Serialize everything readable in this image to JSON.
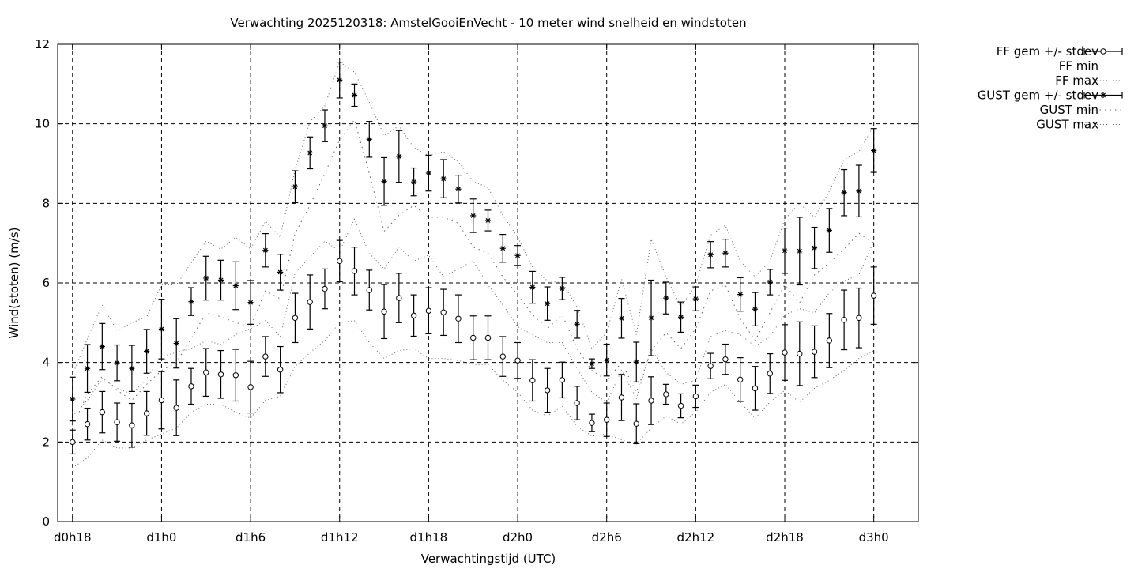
{
  "chart_data": {
    "type": "scatter",
    "title": "Verwachting 2025120318: AmstelGooiEnVecht - 10 meter wind snelheid en windstoten",
    "xlabel": "Verwachtingstijd (UTC)",
    "ylabel": "Wind(stoten) (m/s)",
    "ylim": [
      0,
      12
    ],
    "yticks": [
      0,
      2,
      4,
      6,
      8,
      10,
      12
    ],
    "xlim": [
      -0.5,
      28.5
    ],
    "xticks": [
      {
        "x": 0,
        "label": "d0h18"
      },
      {
        "x": 3,
        "label": "d1h0"
      },
      {
        "x": 6,
        "label": "d1h6"
      },
      {
        "x": 9,
        "label": "d1h12"
      },
      {
        "x": 12,
        "label": "d1h18"
      },
      {
        "x": 15,
        "label": "d2h0"
      },
      {
        "x": 18,
        "label": "d2h6"
      },
      {
        "x": 21,
        "label": "d2h12"
      },
      {
        "x": 24,
        "label": "d2h18"
      },
      {
        "x": 27,
        "label": "d3h0"
      }
    ],
    "grid": true,
    "legend_position": "outside-top-right",
    "legend": [
      {
        "label": "FF gem +/- stdev",
        "style": "errorbar-circle"
      },
      {
        "label": "FF min",
        "style": "dotted"
      },
      {
        "label": "FF max",
        "style": "dotted"
      },
      {
        "label": "GUST gem +/- stdev",
        "style": "errorbar-star"
      },
      {
        "label": "GUST min",
        "style": "dotted-sparse"
      },
      {
        "label": "GUST max",
        "style": "dotted"
      }
    ],
    "x": [
      0,
      0.5,
      1,
      1.5,
      2,
      2.5,
      3,
      3.5,
      4,
      4.5,
      5,
      5.5,
      6,
      6.5,
      7,
      7.5,
      8,
      8.5,
      9,
      9.5,
      10,
      10.5,
      11,
      11.5,
      12,
      12.5,
      13,
      13.5,
      14,
      14.5,
      15,
      15.5,
      16,
      16.5,
      17,
      17.5,
      18,
      18.5,
      19,
      19.5,
      20,
      20.5,
      21,
      21.5,
      22,
      22.5,
      23,
      23.5,
      24,
      24.5,
      25,
      25.5,
      26,
      26.5,
      27
    ],
    "series": [
      {
        "name": "FF gem +/- stdev",
        "values": [
          2.0,
          2.45,
          2.75,
          2.5,
          2.42,
          2.72,
          3.05,
          2.86,
          3.4,
          3.75,
          3.7,
          3.68,
          3.38,
          4.15,
          3.82,
          5.12,
          5.52,
          5.85,
          6.55,
          6.3,
          5.82,
          5.28,
          5.62,
          5.18,
          5.3,
          5.26,
          5.1,
          4.62,
          4.62,
          4.15,
          4.05,
          3.55,
          3.3,
          3.56,
          2.98,
          2.48,
          2.56,
          3.12,
          2.46,
          3.04,
          3.2,
          2.91,
          3.15,
          3.91,
          4.08,
          3.57,
          3.35,
          3.72,
          4.25,
          4.22,
          4.27,
          4.55,
          5.07,
          5.12,
          5.68
        ],
        "stdev": [
          0.3,
          0.4,
          0.52,
          0.48,
          0.55,
          0.55,
          0.72,
          0.7,
          0.45,
          0.6,
          0.6,
          0.65,
          0.65,
          0.5,
          0.58,
          0.62,
          0.68,
          0.5,
          0.52,
          0.6,
          0.5,
          0.68,
          0.62,
          0.52,
          0.58,
          0.58,
          0.6,
          0.55,
          0.55,
          0.5,
          0.45,
          0.52,
          0.55,
          0.45,
          0.42,
          0.22,
          0.42,
          0.58,
          0.5,
          0.6,
          0.25,
          0.3,
          0.28,
          0.32,
          0.38,
          0.55,
          0.55,
          0.5,
          0.7,
          0.8,
          0.65,
          0.68,
          0.75,
          0.75,
          0.72
        ]
      },
      {
        "name": "FF min",
        "values": [
          1.35,
          1.6,
          2.05,
          1.85,
          1.85,
          2.05,
          2.2,
          2.35,
          2.75,
          2.95,
          2.95,
          2.75,
          2.6,
          3.05,
          3.15,
          3.9,
          4.25,
          4.55,
          5.0,
          5.05,
          4.5,
          4.1,
          4.3,
          4.35,
          4.1,
          4.1,
          4.05,
          3.95,
          3.95,
          3.55,
          3.25,
          2.8,
          2.65,
          2.9,
          2.4,
          2.15,
          2.2,
          2.05,
          1.95,
          2.35,
          2.65,
          2.45,
          2.75,
          3.25,
          3.45,
          3.0,
          2.6,
          3.0,
          3.3,
          3.0,
          3.35,
          3.55,
          3.8,
          4.1,
          4.3
        ]
      },
      {
        "name": "FF max",
        "values": [
          2.65,
          3.05,
          3.6,
          3.35,
          3.2,
          3.6,
          4.15,
          4.25,
          4.35,
          4.55,
          4.45,
          4.7,
          4.85,
          5.05,
          4.65,
          6.25,
          6.65,
          7.05,
          6.8,
          7.6,
          6.75,
          6.35,
          6.9,
          6.55,
          6.7,
          6.15,
          6.35,
          6.55,
          5.95,
          5.45,
          4.9,
          4.7,
          4.5,
          4.5,
          3.85,
          3.25,
          3.0,
          3.8,
          3.1,
          4.35,
          3.75,
          3.45,
          3.55,
          4.65,
          4.8,
          4.7,
          4.4,
          4.65,
          5.2,
          5.35,
          5.25,
          5.75,
          6.05,
          6.2,
          7.05
        ]
      },
      {
        "name": "GUST gem +/- stdev",
        "values": [
          3.08,
          3.85,
          4.4,
          3.99,
          3.85,
          4.28,
          4.84,
          4.48,
          5.53,
          6.12,
          6.07,
          5.93,
          5.51,
          6.82,
          6.27,
          8.42,
          9.27,
          9.95,
          11.1,
          10.72,
          9.61,
          8.55,
          9.18,
          8.54,
          8.76,
          8.62,
          8.36,
          7.69,
          7.57,
          6.87,
          6.69,
          5.89,
          5.48,
          5.86,
          4.96,
          3.97,
          4.06,
          5.11,
          4.01,
          5.12,
          5.62,
          5.14,
          5.6,
          6.71,
          6.75,
          5.71,
          5.34,
          6.02,
          6.81,
          6.8,
          6.88,
          7.32,
          8.27,
          8.31,
          9.33
        ]
      },
      {
        "name": "GUST min",
        "values": [
          2.4,
          3.2,
          3.65,
          3.3,
          3.05,
          3.45,
          3.8,
          4.0,
          4.6,
          5.25,
          5.15,
          5.0,
          4.9,
          5.8,
          5.6,
          7.25,
          7.95,
          8.75,
          9.6,
          10.1,
          8.75,
          7.3,
          7.7,
          7.95,
          7.65,
          7.65,
          7.5,
          6.9,
          6.75,
          6.15,
          5.7,
          5.2,
          4.85,
          5.2,
          4.35,
          3.8,
          3.55,
          4.0,
          3.25,
          4.3,
          4.75,
          4.35,
          4.85,
          5.8,
          5.95,
          5.1,
          4.55,
          5.25,
          5.95,
          5.5,
          6.2,
          6.5,
          6.85,
          7.25,
          7.0
        ]
      },
      {
        "name": "GUST max",
        "values": [
          3.7,
          4.6,
          5.45,
          4.8,
          5.0,
          5.15,
          5.95,
          5.95,
          6.5,
          7.05,
          6.85,
          7.15,
          6.85,
          7.55,
          7.15,
          8.85,
          10.05,
          10.45,
          11.55,
          11.3,
          10.55,
          9.7,
          9.95,
          9.4,
          9.2,
          9.3,
          9.05,
          8.55,
          8.4,
          7.7,
          7.15,
          6.4,
          6.05,
          6.0,
          5.4,
          4.35,
          4.75,
          6.1,
          4.7,
          7.1,
          6.15,
          5.4,
          5.95,
          7.2,
          7.45,
          6.55,
          6.15,
          6.55,
          7.6,
          8.0,
          7.65,
          8.3,
          9.1,
          9.3,
          9.95
        ]
      },
      {
        "name": "GUST stdev",
        "values": [
          0.55,
          0.6,
          0.58,
          0.45,
          0.58,
          0.55,
          0.75,
          0.62,
          0.35,
          0.55,
          0.5,
          0.6,
          0.55,
          0.42,
          0.45,
          0.4,
          0.4,
          0.4,
          0.45,
          0.28,
          0.45,
          0.6,
          0.65,
          0.35,
          0.45,
          0.48,
          0.35,
          0.42,
          0.26,
          0.35,
          0.25,
          0.4,
          0.42,
          0.28,
          0.35,
          0.12,
          0.4,
          0.5,
          0.5,
          0.95,
          0.4,
          0.38,
          0.3,
          0.33,
          0.35,
          0.42,
          0.42,
          0.32,
          0.57,
          0.85,
          0.52,
          0.55,
          0.58,
          0.65,
          0.55
        ]
      }
    ]
  }
}
